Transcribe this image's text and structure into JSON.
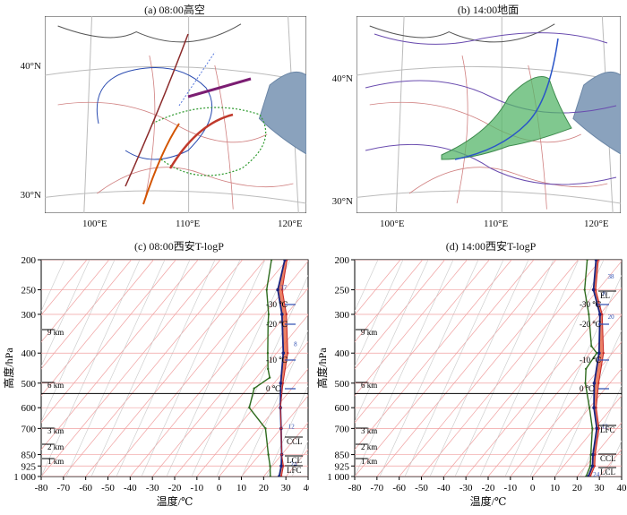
{
  "panels": {
    "a": {
      "title": "(a) 08:00高空"
    },
    "b": {
      "title": "(b) 14:00地面"
    },
    "c": {
      "title": "(c) 08:00西安T-logP"
    },
    "d": {
      "title": "(d) 14:00西安T-logP"
    }
  },
  "map_axes": {
    "lon_labels": [
      "100°E",
      "110°E",
      "120°E"
    ],
    "lat_labels_a": [
      "40°N",
      "30°N"
    ],
    "lat_labels_b": [
      "40°N",
      "30°N"
    ]
  },
  "skewt_axes": {
    "pressure_ticks": [
      "200",
      "250",
      "300",
      "400",
      "500",
      "600",
      "700",
      "850",
      "925",
      "1 000"
    ],
    "temp_ticks": [
      "-80",
      "-70",
      "-60",
      "-50",
      "-40",
      "-30",
      "-20",
      "-10",
      "0",
      "10",
      "20",
      "30",
      "40"
    ],
    "ylabel": "高度/hPa",
    "xlabel": "温度/℃",
    "height_labels": [
      "9 km",
      "6 km",
      "3 km",
      "2 km",
      "1 km"
    ],
    "isotherm_labels": [
      "-30 ℃",
      "-20 ℃",
      "-10 ℃",
      "0 ℃"
    ]
  },
  "chart_data": [
    {
      "panel": "c",
      "type": "line",
      "title": "(c) 08:00西安T-logP",
      "xlabel": "温度/℃",
      "ylabel": "高度/hPa",
      "xlim": [
        -80,
        40
      ],
      "y_scale": "log-pressure",
      "ylim": [
        1000,
        200
      ],
      "level_labels": {
        "ccl": "CCL",
        "lcl": "LCL",
        "lfc": "LFC"
      },
      "series": [
        {
          "kind": "temperature",
          "color": "#1a237e",
          "points": [
            [
              -51,
              200
            ],
            [
              -43,
              250
            ],
            [
              -32,
              300
            ],
            [
              -17,
              400
            ],
            [
              -7,
              500
            ],
            [
              2,
              600
            ],
            [
              10,
              700
            ],
            [
              20,
              850
            ],
            [
              24,
              925
            ],
            [
              27,
              1000
            ]
          ]
        },
        {
          "kind": "dewpoint",
          "color": "#2e6b1e",
          "points": [
            [
              -57,
              200
            ],
            [
              -48,
              250
            ],
            [
              -38,
              300
            ],
            [
              -35,
              320
            ],
            [
              -24,
              400
            ],
            [
              -18,
              450
            ],
            [
              -14,
              480
            ],
            [
              -17,
              520
            ],
            [
              -12,
              600
            ],
            [
              3,
              700
            ],
            [
              14,
              850
            ],
            [
              19,
              925
            ],
            [
              23,
              1000
            ]
          ]
        },
        {
          "kind": "parcel",
          "color": "#c62828",
          "points": [
            [
              -50,
              200
            ],
            [
              -41,
              250
            ],
            [
              -30,
              300
            ],
            [
              -15,
              400
            ],
            [
              -6,
              500
            ],
            [
              2,
              600
            ],
            [
              10,
              700
            ],
            [
              20,
              850
            ],
            [
              25,
              925
            ],
            [
              28,
              1000
            ]
          ]
        }
      ],
      "point_labels": [
        "37",
        "8",
        "12",
        "24"
      ]
    },
    {
      "panel": "d",
      "type": "line",
      "title": "(d) 14:00西安T-logP",
      "xlabel": "温度/℃",
      "ylabel": "高度/hPa",
      "xlim": [
        -80,
        40
      ],
      "y_scale": "log-pressure",
      "ylim": [
        1000,
        200
      ],
      "level_labels": {
        "el": "EL",
        "lfc": "LFC",
        "ccl": "CCL",
        "lcl": "LCL"
      },
      "series": [
        {
          "kind": "temperature",
          "color": "#1a237e",
          "points": [
            [
              -52,
              200
            ],
            [
              -42,
              250
            ],
            [
              -30,
              300
            ],
            [
              -16,
              400
            ],
            [
              -7,
              500
            ],
            [
              2,
              600
            ],
            [
              11,
              700
            ],
            [
              19,
              850
            ],
            [
              23,
              925
            ],
            [
              25,
              1000
            ]
          ]
        },
        {
          "kind": "dewpoint",
          "color": "#2e6b1e",
          "points": [
            [
              -56,
              200
            ],
            [
              -46,
              250
            ],
            [
              -35,
              300
            ],
            [
              -22,
              380
            ],
            [
              -17,
              400
            ],
            [
              -16,
              450
            ],
            [
              -11,
              500
            ],
            [
              0,
              600
            ],
            [
              9,
              700
            ],
            [
              18,
              850
            ],
            [
              22,
              925
            ],
            [
              24,
              1000
            ]
          ]
        },
        {
          "kind": "parcel",
          "color": "#c62828",
          "points": [
            [
              -51,
              200
            ],
            [
              -41,
              250
            ],
            [
              -29,
              300
            ],
            [
              -14,
              400
            ],
            [
              -5,
              500
            ],
            [
              3,
              600
            ],
            [
              12,
              700
            ],
            [
              20,
              850
            ],
            [
              24,
              925
            ],
            [
              26,
              1000
            ]
          ]
        }
      ],
      "point_labels": [
        "38",
        "36",
        "20",
        "12",
        "24"
      ]
    }
  ]
}
